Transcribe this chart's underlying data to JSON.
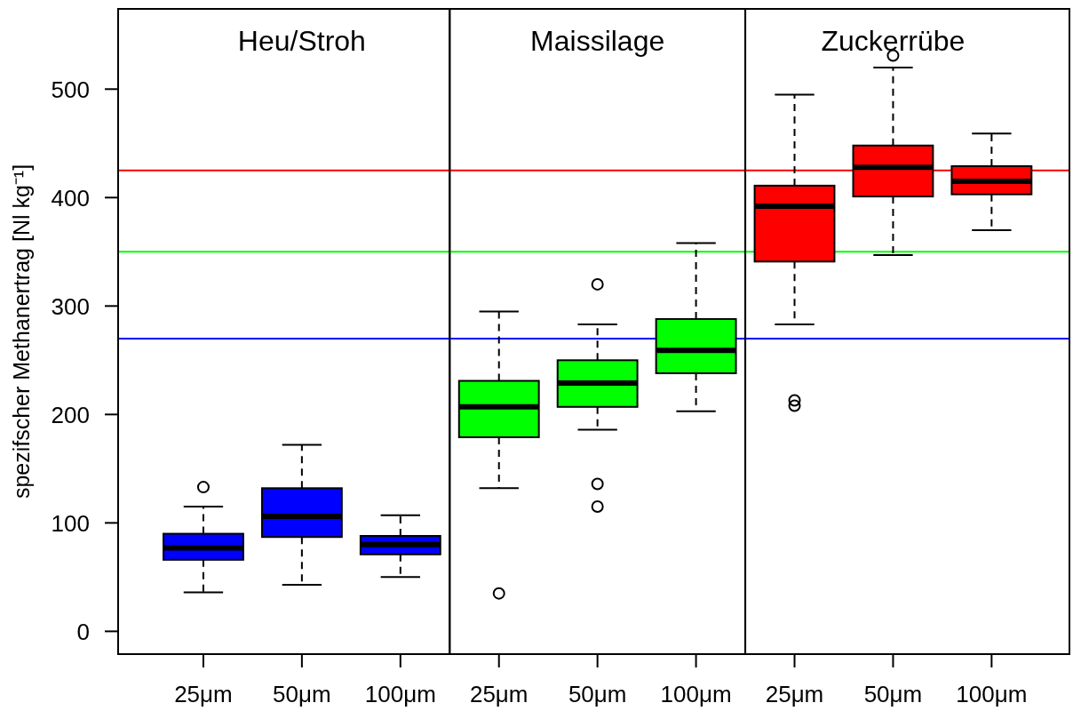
{
  "chart_data": [
    {
      "type": "box",
      "title": "Heu/Stroh",
      "ylabel": "spezifscher Methanertrag [Nl kg⁻¹]",
      "categories": [
        "25μm",
        "50μm",
        "100μm"
      ],
      "ylim": [
        -21,
        574
      ],
      "yticks": [
        0,
        100,
        200,
        300,
        400,
        500
      ],
      "series": [
        {
          "color": "#0000ff",
          "boxes": [
            {
              "low": 36,
              "q1": 66,
              "median": 77,
              "q3": 90,
              "high": 115,
              "outliers": [
                133
              ]
            },
            {
              "low": 43,
              "q1": 87,
              "median": 106,
              "q3": 132,
              "high": 172
            },
            {
              "low": 50,
              "q1": 71,
              "median": 80,
              "q3": 88,
              "high": 107
            }
          ]
        }
      ],
      "ref_lines": [
        {
          "axis": "y",
          "value": 425,
          "color": "#ff0000"
        },
        {
          "axis": "y",
          "value": 350,
          "color": "#00ff00"
        },
        {
          "axis": "y",
          "value": 270,
          "color": "#0000ff"
        }
      ]
    },
    {
      "type": "box",
      "title": "Maissilage",
      "categories": [
        "25μm",
        "50μm",
        "100μm"
      ],
      "ylim": [
        -21,
        574
      ],
      "tick_labels": "x",
      "series": [
        {
          "color": "#00ff00",
          "boxes": [
            {
              "low": 132,
              "q1": 179,
              "median": 207,
              "q3": 231,
              "high": 295,
              "outliers": [
                35
              ]
            },
            {
              "low": 186,
              "q1": 207,
              "median": 229,
              "q3": 250,
              "high": 283,
              "outliers": [
                320,
                136,
                115
              ]
            },
            {
              "low": 203,
              "q1": 238,
              "median": 259,
              "q3": 288,
              "high": 358
            }
          ]
        }
      ],
      "ref_lines": [
        {
          "axis": "y",
          "value": 425,
          "color": "#ff0000"
        },
        {
          "axis": "y",
          "value": 350,
          "color": "#00ff00"
        },
        {
          "axis": "y",
          "value": 270,
          "color": "#0000ff"
        }
      ]
    },
    {
      "type": "box",
      "title": "Zuckerrübe",
      "categories": [
        "25μm",
        "50μm",
        "100μm"
      ],
      "ylim": [
        -21,
        574
      ],
      "tick_labels": "x",
      "series": [
        {
          "color": "#ff0000",
          "boxes": [
            {
              "low": 283,
              "q1": 341,
              "median": 392,
              "q3": 411,
              "high": 495,
              "outliers": [
                213,
                208
              ]
            },
            {
              "low": 347,
              "q1": 401,
              "median": 428,
              "q3": 448,
              "high": 520,
              "outliers": [
                531
              ]
            },
            {
              "low": 370,
              "q1": 403,
              "median": 415,
              "q3": 429,
              "high": 459
            }
          ]
        }
      ],
      "ref_lines": [
        {
          "axis": "y",
          "value": 425,
          "color": "#ff0000"
        },
        {
          "axis": "y",
          "value": 350,
          "color": "#00ff00"
        },
        {
          "axis": "y",
          "value": 270,
          "color": "#0000ff"
        }
      ]
    }
  ]
}
